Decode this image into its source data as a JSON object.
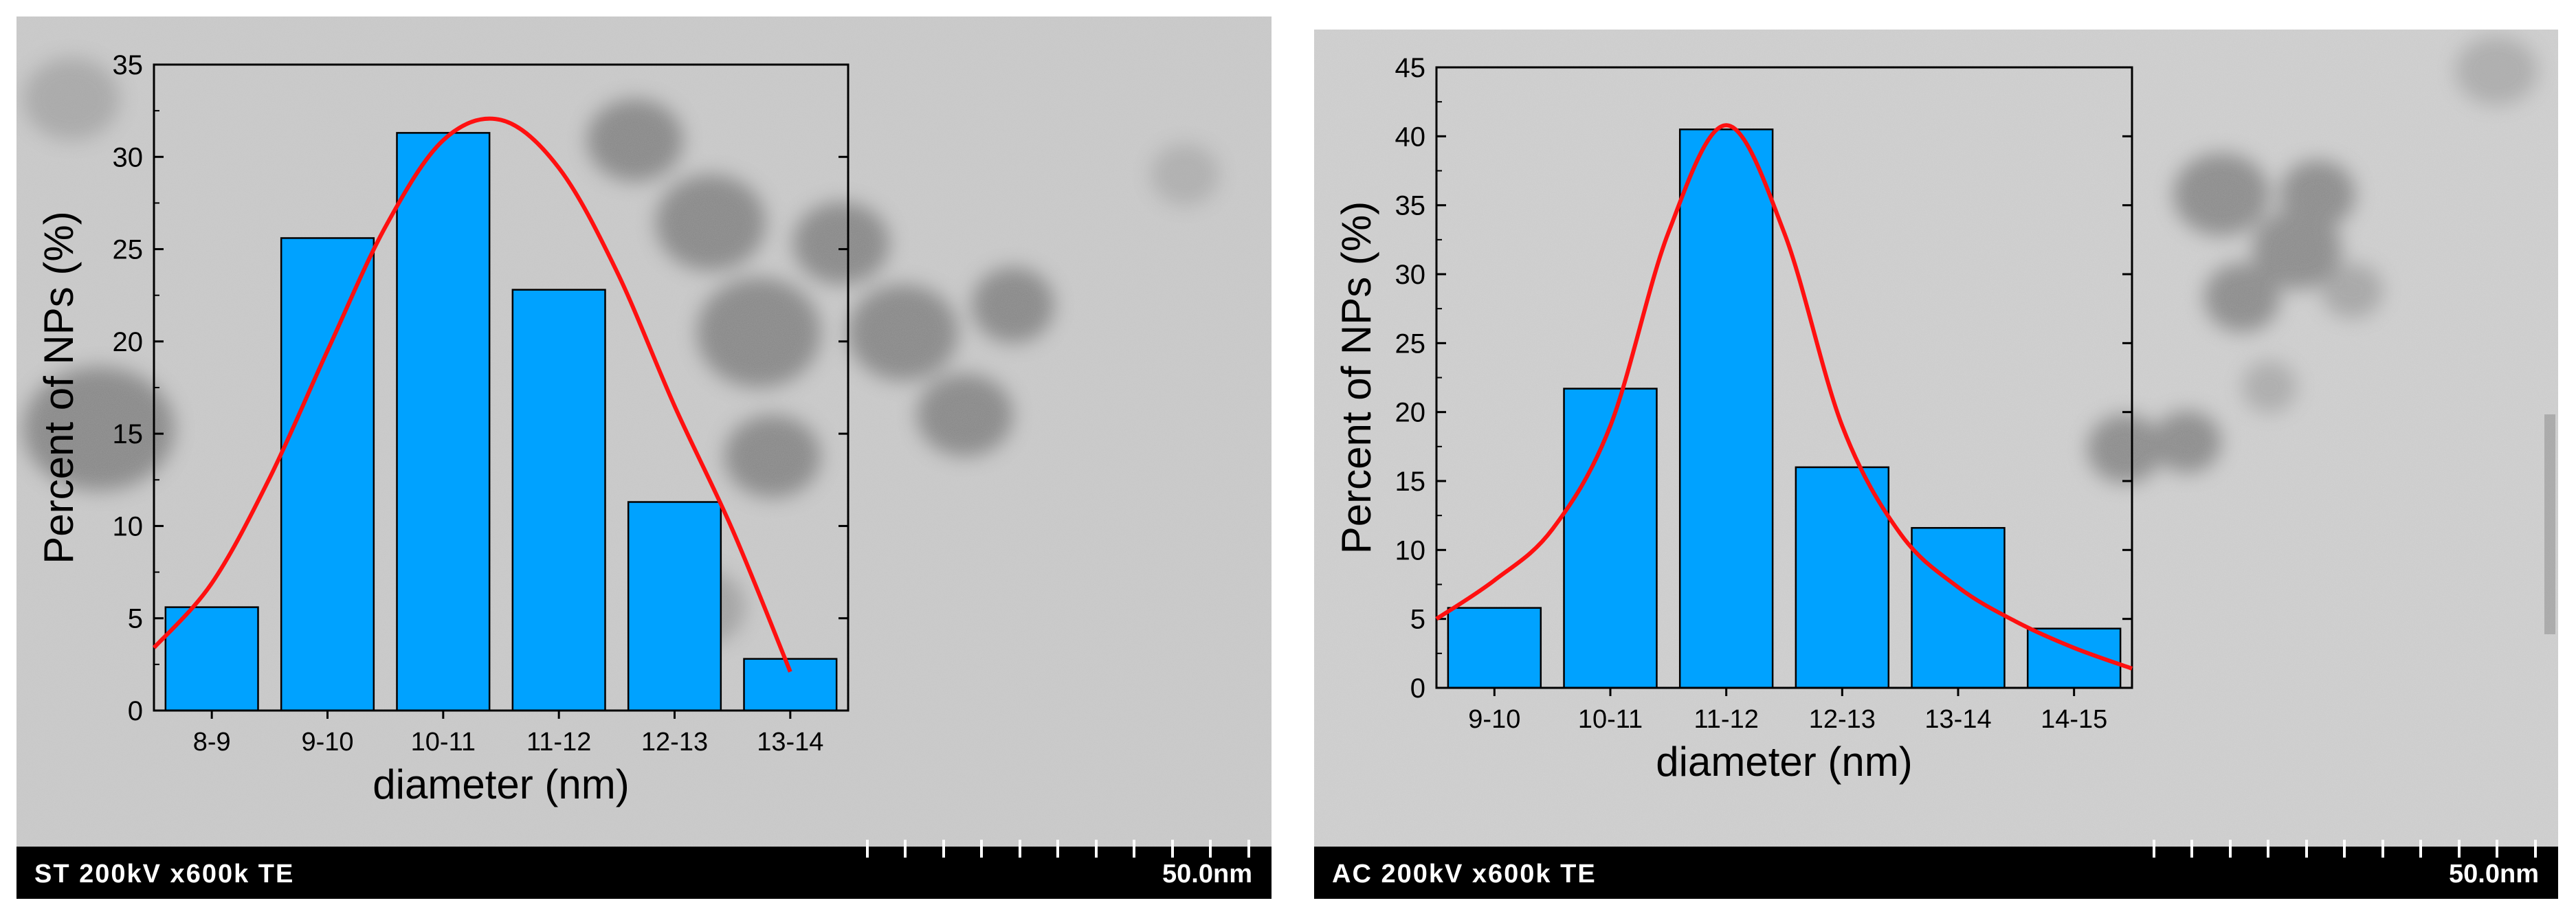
{
  "panels": [
    {
      "info_text": "ST  200kV  x600k  TE",
      "scale_label": "50.0nm"
    },
    {
      "info_text": "AC  200kV  x600k  TE",
      "scale_label": "50.0nm"
    }
  ],
  "colors": {
    "bar_fill": "#00a2ff",
    "fit_line": "#ff1010",
    "axis": "#000000",
    "info_bar": "#000000"
  },
  "chart_data": [
    {
      "type": "bar",
      "categories": [
        "8-9",
        "9-10",
        "10-11",
        "11-12",
        "12-13",
        "13-14"
      ],
      "values": [
        5.6,
        25.6,
        31.3,
        22.8,
        11.3,
        2.8
      ],
      "xlabel": "diameter (nm)",
      "ylabel": "Percent of NPs (%)",
      "ylim": [
        0,
        35
      ],
      "yticks": [
        0,
        5,
        10,
        15,
        20,
        25,
        30,
        35
      ],
      "fit": {
        "type": "gaussian",
        "x": [
          -0.5,
          0,
          0.5,
          1,
          1.5,
          2,
          2.5,
          3,
          3.5,
          4,
          4.5,
          5
        ],
        "y": [
          3.4,
          6.9,
          12.6,
          19.5,
          26.2,
          30.9,
          32.0,
          29.4,
          23.8,
          16.5,
          9.8,
          2.1
        ]
      },
      "grid": false,
      "legend": "none"
    },
    {
      "type": "bar",
      "categories": [
        "9-10",
        "10-11",
        "11-12",
        "12-13",
        "13-14",
        "14-15"
      ],
      "values": [
        5.8,
        21.7,
        40.5,
        16.0,
        11.6,
        4.3
      ],
      "xlabel": "diameter (nm)",
      "ylabel": "Percent of NPs (%)",
      "ylim": [
        0,
        45
      ],
      "yticks": [
        0,
        5,
        10,
        15,
        20,
        25,
        30,
        35,
        40,
        45
      ],
      "fit": {
        "type": "lorentzian",
        "x": [
          -0.5,
          0,
          0.5,
          1,
          1.5,
          2,
          2.5,
          3,
          3.5,
          4,
          4.5,
          5,
          5.5
        ],
        "y": [
          5.0,
          7.8,
          11.5,
          19.0,
          33.0,
          40.8,
          33.0,
          19.0,
          11.2,
          7.3,
          4.8,
          2.9,
          1.4
        ]
      },
      "grid": false,
      "legend": "none"
    }
  ]
}
